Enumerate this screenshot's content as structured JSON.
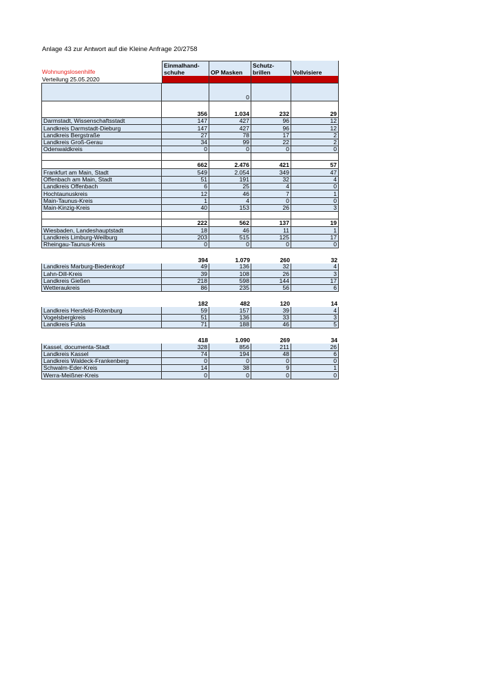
{
  "title": "Anlage 43 zur Antwort auf die Kleine Anfrage 20/2758",
  "program": "Wohnungslosenhilfe",
  "distribution": "Verteilung 25.05.2020",
  "colors": {
    "header_fill": "#dce9f6",
    "red_band": "#c00000",
    "program_text": "#e8201c"
  },
  "columns": [
    {
      "line1": "Einmalhand-",
      "line2": "schuhe"
    },
    {
      "line1": "",
      "line2": "OP Masken"
    },
    {
      "line1": "Schutz-",
      "line2": "brillen"
    },
    {
      "line1": "",
      "line2": "Vollvisiere"
    }
  ],
  "top_block_values": [
    "",
    "0",
    "",
    ""
  ],
  "groups": [
    {
      "totals": [
        "356",
        "1.034",
        "232",
        "29"
      ],
      "rows": [
        {
          "name": "Darmstadt, Wissenschaftsstadt",
          "values": [
            "147",
            "427",
            "96",
            "12"
          ]
        },
        {
          "name": "Landkreis Darmstadt-Dieburg",
          "values": [
            "147",
            "427",
            "96",
            "12"
          ]
        },
        {
          "name": "Landkreis Bergstraße",
          "values": [
            "27",
            "78",
            "17",
            "2"
          ]
        },
        {
          "name": "Landkreis Groß-Gerau",
          "values": [
            "34",
            "99",
            "22",
            "2"
          ]
        },
        {
          "name": "Odenwaldkreis",
          "values": [
            "0",
            "0",
            "0",
            "0"
          ]
        }
      ]
    },
    {
      "totals": [
        "662",
        "2.476",
        "421",
        "57"
      ],
      "rows": [
        {
          "name": "Frankfurt am Main, Stadt",
          "values": [
            "549",
            "2.054",
            "349",
            "47"
          ]
        },
        {
          "name": "Offenbach am Main, Stadt",
          "values": [
            "51",
            "191",
            "32",
            "4"
          ]
        },
        {
          "name": "Landkreis Offenbach",
          "values": [
            "6",
            "25",
            "4",
            "0"
          ]
        },
        {
          "name": "Hochtaunuskreis",
          "values": [
            "12",
            "46",
            "7",
            "1"
          ]
        },
        {
          "name": "Main-Taunus-Kreis",
          "values": [
            "1",
            "4",
            "0",
            "0"
          ]
        },
        {
          "name": "Main-Kinzig-Kreis",
          "values": [
            "40",
            "153",
            "26",
            "3"
          ]
        }
      ]
    },
    {
      "totals": [
        "222",
        "562",
        "137",
        "19"
      ],
      "rows": [
        {
          "name": "Wiesbaden, Landeshauptstadt",
          "values": [
            "18",
            "46",
            "11",
            "1"
          ]
        },
        {
          "name": "Landkreis Limburg-Weilburg",
          "values": [
            "203",
            "515",
            "125",
            "17"
          ]
        },
        {
          "name": "Rheingau-Taunus-Kreis",
          "values": [
            "0",
            "0",
            "0",
            "0"
          ]
        }
      ]
    },
    {
      "totals": [
        "394",
        "1.079",
        "260",
        "32"
      ],
      "rows": [
        {
          "name": "Landkreis Marburg-Biedenkopf",
          "values": [
            "49",
            "136",
            "32",
            "4"
          ]
        },
        {
          "name": "Lahn-Dill-Kreis",
          "values": [
            "39",
            "108",
            "26",
            "3"
          ]
        },
        {
          "name": "Landkreis Gießen",
          "values": [
            "218",
            "598",
            "144",
            "17"
          ]
        },
        {
          "name": "Wetteraukreis",
          "values": [
            "86",
            "235",
            "56",
            "6"
          ]
        }
      ]
    },
    {
      "totals": [
        "182",
        "482",
        "120",
        "14"
      ],
      "rows": [
        {
          "name": "Landkreis Hersfeld-Rotenburg",
          "values": [
            "59",
            "157",
            "39",
            "4"
          ]
        },
        {
          "name": "Vogelsbergkreis",
          "values": [
            "51",
            "136",
            "33",
            "3"
          ]
        },
        {
          "name": "Landkreis Fulda",
          "values": [
            "71",
            "188",
            "46",
            "5"
          ]
        }
      ]
    },
    {
      "totals": [
        "418",
        "1.090",
        "269",
        "34"
      ],
      "rows": [
        {
          "name": "Kassel,  documenta-Stadt",
          "values": [
            "328",
            "856",
            "211",
            "26"
          ]
        },
        {
          "name": "Landkreis Kassel",
          "values": [
            "74",
            "194",
            "48",
            "6"
          ]
        },
        {
          "name": "Landkreis Waldeck-Frankenberg",
          "values": [
            "0",
            "0",
            "0",
            "0"
          ]
        },
        {
          "name": "Schwalm-Eder-Kreis",
          "values": [
            "14",
            "38",
            "9",
            "1"
          ]
        },
        {
          "name": "Werra-Meißner-Kreis",
          "values": [
            "0",
            "0",
            "0",
            "0"
          ]
        }
      ]
    }
  ]
}
